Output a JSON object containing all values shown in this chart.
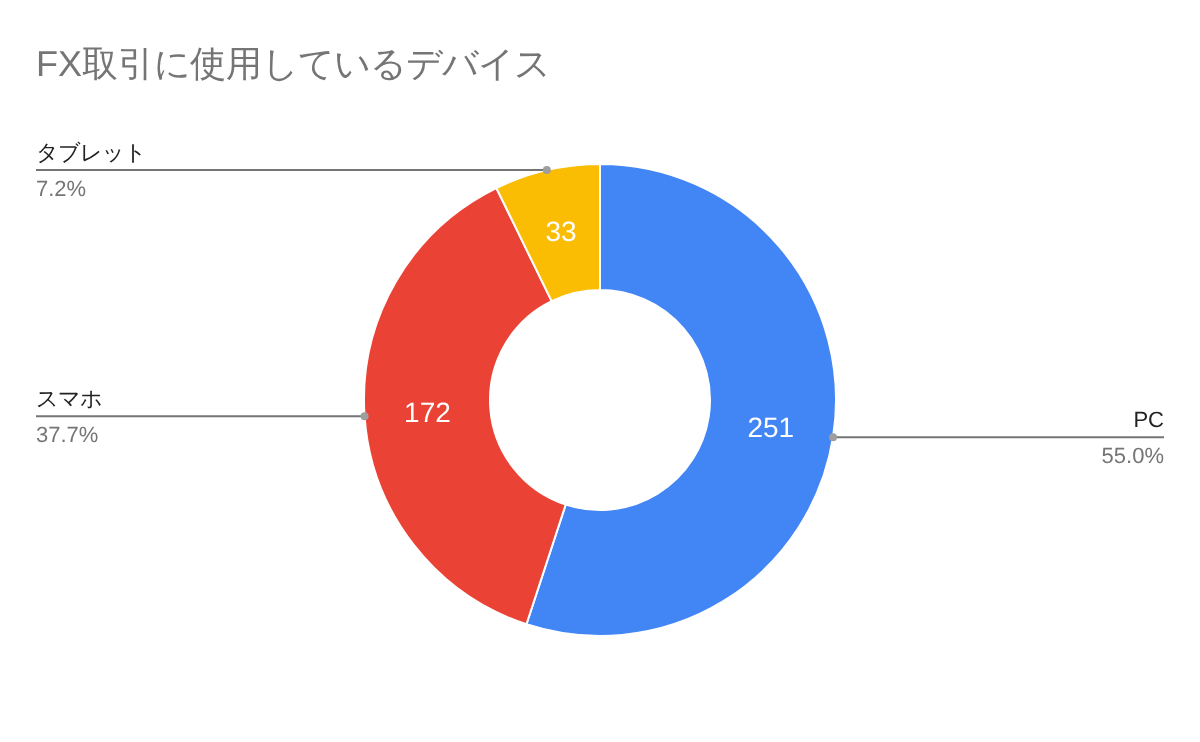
{
  "chart_data": {
    "type": "donut",
    "title": "FX取引に使用しているデバイス",
    "categories": [
      "PC",
      "スマホ",
      "タブレット"
    ],
    "values": [
      251,
      172,
      33
    ],
    "colors": [
      "#4285f4",
      "#ea4335",
      "#fbbc04"
    ],
    "data_labels": true,
    "annotations": [
      "55.0%",
      "37.7%",
      "7.2%"
    ]
  }
}
